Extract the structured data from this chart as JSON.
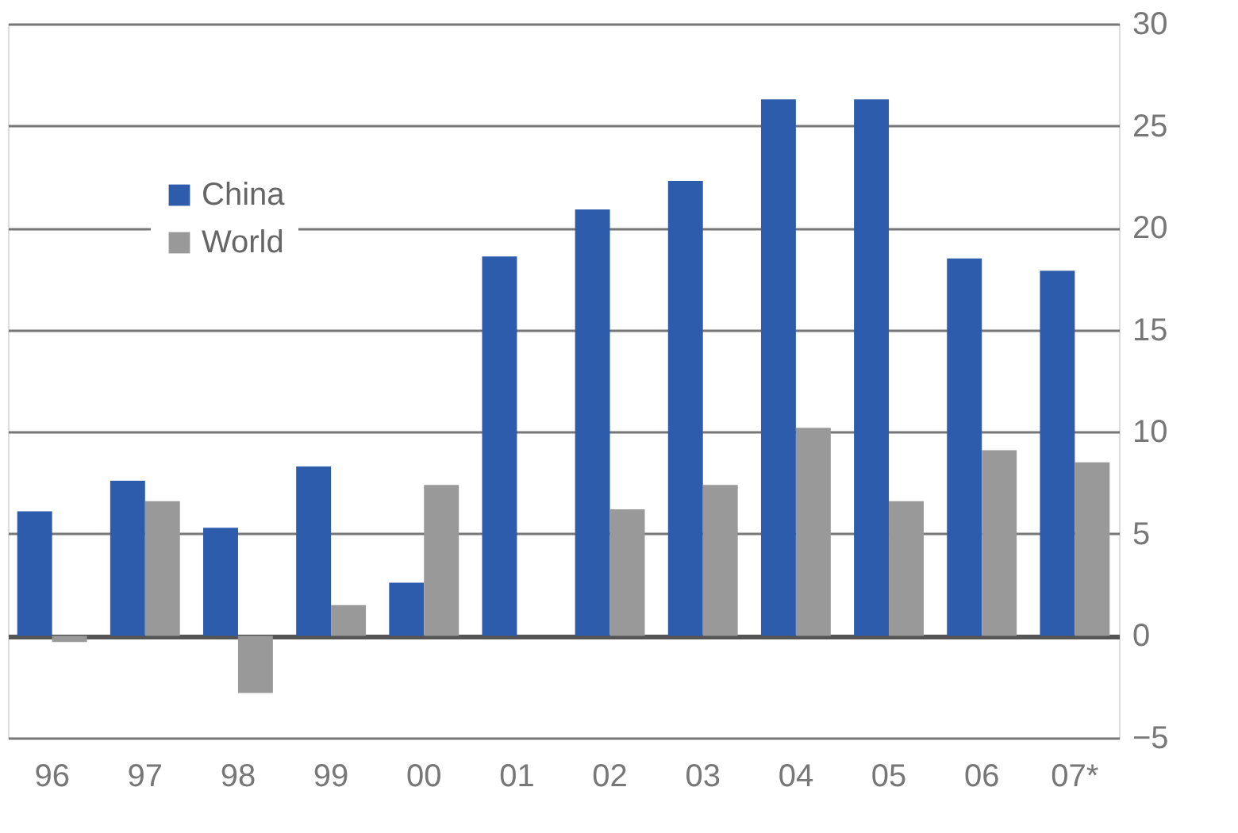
{
  "chart_data": {
    "type": "bar",
    "categories": [
      "96",
      "97",
      "98",
      "99",
      "00",
      "01",
      "02",
      "03",
      "04",
      "05",
      "06",
      "07*"
    ],
    "series": [
      {
        "name": "China",
        "color": "#2e5cac",
        "values": [
          6.1,
          7.6,
          5.3,
          8.3,
          2.6,
          18.6,
          20.9,
          22.3,
          26.3,
          26.3,
          18.5,
          17.9
        ]
      },
      {
        "name": "World",
        "color": "#999999",
        "values": [
          -0.3,
          6.6,
          -2.8,
          1.5,
          7.4,
          0,
          6.2,
          7.4,
          10.2,
          6.6,
          9.1,
          8.5
        ]
      }
    ],
    "ylim": [
      -5,
      30
    ],
    "yticks": [
      -5,
      0,
      5,
      10,
      15,
      20,
      25,
      30
    ],
    "grid": "y",
    "legend": "top left"
  }
}
